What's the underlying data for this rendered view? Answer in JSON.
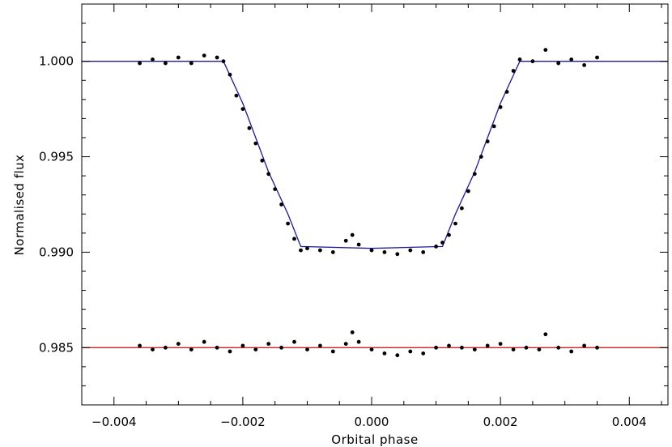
{
  "chart_data": {
    "type": "scatter",
    "xlabel": "Orbital phase",
    "ylabel": "Normalised flux",
    "xlim": [
      -0.0045,
      0.0046
    ],
    "ylim": [
      0.982,
      1.003
    ],
    "x_ticks": [
      -0.004,
      -0.002,
      0.0,
      0.002,
      0.004
    ],
    "x_tick_labels": [
      "−0.004",
      "−0.002",
      "0.000",
      "0.002",
      "0.004"
    ],
    "y_ticks": [
      0.985,
      0.99,
      0.995,
      1.0
    ],
    "y_tick_labels": [
      "0.985",
      "0.990",
      "0.995",
      "1.000"
    ],
    "grid": false,
    "lines": [
      {
        "name": "",
        "color": "#1a1aa0",
        "x": [
          -0.0045,
          -0.0023,
          -0.002,
          -0.0016,
          -0.0013,
          -0.0011,
          0.0,
          0.0011,
          0.0013,
          0.0016,
          0.002,
          0.0023,
          0.0046
        ],
        "y": [
          1.0,
          1.0,
          0.9978,
          0.9942,
          0.992,
          0.9903,
          0.9902,
          0.9903,
          0.992,
          0.9942,
          0.9978,
          1.0,
          1.0
        ]
      },
      {
        "name": "",
        "color": "#cc2222",
        "x": [
          -0.0045,
          0.0046
        ],
        "y": [
          0.985,
          0.985
        ]
      }
    ],
    "series": [
      {
        "name": "",
        "color": "#000000",
        "x": [
          -0.0036,
          -0.0034,
          -0.0032,
          -0.003,
          -0.0028,
          -0.0026,
          -0.0024,
          -0.0023,
          -0.0022,
          -0.0021,
          -0.002,
          -0.0019,
          -0.0018,
          -0.0017,
          -0.0016,
          -0.0015,
          -0.0014,
          -0.0013,
          -0.0012,
          -0.0011,
          -0.001,
          -0.0008,
          -0.0006,
          -0.0004,
          -0.0003,
          -0.0002,
          0.0,
          0.0002,
          0.0004,
          0.0006,
          0.0008,
          0.001,
          0.0011,
          0.0012,
          0.0013,
          0.0014,
          0.0015,
          0.0016,
          0.0017,
          0.0018,
          0.0019,
          0.002,
          0.0021,
          0.0022,
          0.0023,
          0.0025,
          0.0027,
          0.0029,
          0.0031,
          0.0033,
          0.0035
        ],
        "y": [
          0.9999,
          1.0001,
          0.9999,
          1.0002,
          0.9999,
          1.0003,
          1.0002,
          1.0,
          0.9993,
          0.9982,
          0.9975,
          0.9965,
          0.9957,
          0.9948,
          0.9941,
          0.9933,
          0.9925,
          0.9915,
          0.9907,
          0.9901,
          0.9902,
          0.9901,
          0.99,
          0.9906,
          0.9909,
          0.9904,
          0.9901,
          0.99,
          0.9899,
          0.9901,
          0.99,
          0.9903,
          0.9905,
          0.9909,
          0.9915,
          0.9923,
          0.9932,
          0.9941,
          0.995,
          0.9958,
          0.9966,
          0.9976,
          0.9984,
          0.9995,
          1.0001,
          1.0,
          1.0006,
          0.9999,
          1.0001,
          0.9998,
          1.0002
        ]
      },
      {
        "name": "",
        "color": "#000000",
        "x": [
          -0.0036,
          -0.0034,
          -0.0032,
          -0.003,
          -0.0028,
          -0.0026,
          -0.0024,
          -0.0022,
          -0.002,
          -0.0018,
          -0.0016,
          -0.0014,
          -0.0012,
          -0.001,
          -0.0008,
          -0.0006,
          -0.0004,
          -0.0003,
          -0.0002,
          0.0,
          0.0002,
          0.0004,
          0.0006,
          0.0008,
          0.001,
          0.0012,
          0.0014,
          0.0016,
          0.0018,
          0.002,
          0.0022,
          0.0024,
          0.0026,
          0.0027,
          0.0029,
          0.0031,
          0.0033,
          0.0035
        ],
        "y": [
          0.9851,
          0.9849,
          0.985,
          0.9852,
          0.9849,
          0.9853,
          0.985,
          0.9848,
          0.9851,
          0.9849,
          0.9852,
          0.985,
          0.9853,
          0.9849,
          0.9851,
          0.9848,
          0.9852,
          0.9858,
          0.9853,
          0.9849,
          0.9847,
          0.9846,
          0.9848,
          0.9847,
          0.985,
          0.9851,
          0.985,
          0.9849,
          0.9851,
          0.9852,
          0.9849,
          0.985,
          0.9849,
          0.9857,
          0.985,
          0.9848,
          0.9851,
          0.985
        ]
      }
    ]
  }
}
